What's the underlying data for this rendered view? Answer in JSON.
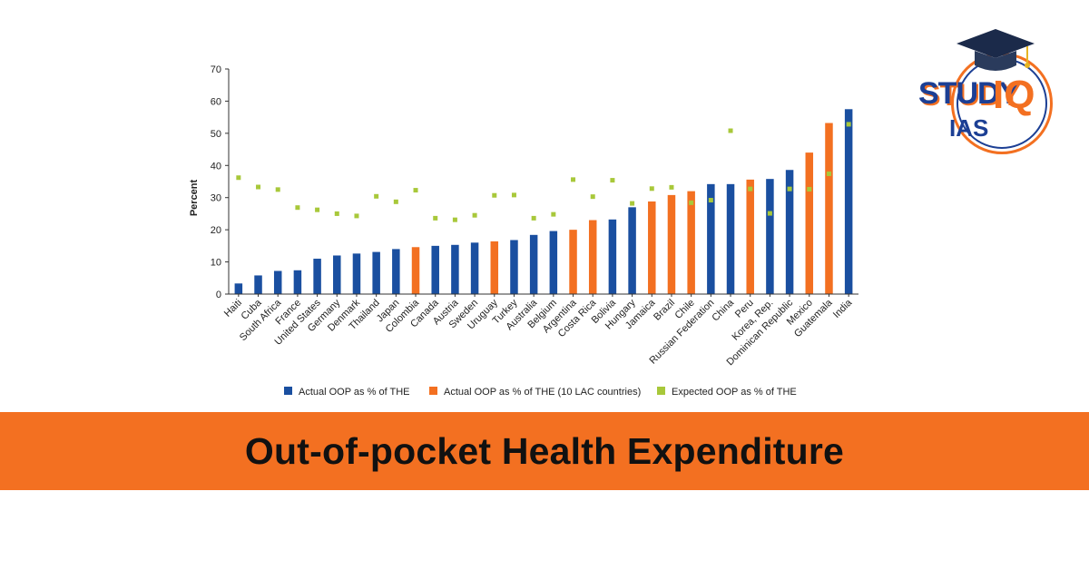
{
  "chart_data": {
    "type": "bar",
    "title": "",
    "ylabel": "Percent",
    "xlabel": "",
    "ylim": [
      0,
      70
    ],
    "yticks": [
      0,
      10,
      20,
      30,
      40,
      50,
      60,
      70
    ],
    "grid": false,
    "legend_position": "bottom",
    "categories": [
      "Haiti",
      "Cuba",
      "South Africa",
      "France",
      "United States",
      "Germany",
      "Denmark",
      "Thailand",
      "Japan",
      "Colombia",
      "Canada",
      "Austria",
      "Sweden",
      "Uruguay",
      "Turkey",
      "Australia",
      "Belgium",
      "Argentina",
      "Costa Rica",
      "Bolivia",
      "Hungary",
      "Jamaica",
      "Brazil",
      "Chile",
      "Russian Federation",
      "China",
      "Peru",
      "Korea, Rep.",
      "Dominican Republic",
      "Mexico",
      "Guatemala",
      "India"
    ],
    "groups": [
      "actual",
      "actual",
      "actual",
      "actual",
      "actual",
      "actual",
      "actual",
      "actual",
      "actual",
      "lac",
      "actual",
      "actual",
      "actual",
      "lac",
      "actual",
      "actual",
      "actual",
      "lac",
      "lac",
      "actual",
      "actual",
      "lac",
      "lac",
      "lac",
      "actual",
      "actual",
      "lac",
      "actual",
      "actual",
      "lac",
      "lac",
      "actual"
    ],
    "series": [
      {
        "name": "Actual OOP as % of THE",
        "color": "#1a4fa0"
      },
      {
        "name": "Actual OOP as % of THE (10 LAC countries)",
        "color": "#f37021"
      },
      {
        "name": "Expected OOP as % of THE",
        "color": "#a8c83a"
      }
    ],
    "actual_values": [
      3.3,
      5.8,
      7.2,
      7.4,
      11.0,
      12.0,
      12.6,
      13.1,
      14.0,
      14.6,
      15.0,
      15.3,
      16.0,
      16.4,
      16.8,
      18.4,
      19.6,
      20.0,
      23.0,
      23.2,
      27.0,
      28.8,
      30.8,
      32.0,
      34.2,
      34.2,
      35.6,
      35.8,
      38.6,
      44.0,
      53.2,
      57.5
    ],
    "expected_values": [
      36.2,
      33.3,
      32.5,
      26.9,
      26.2,
      25.0,
      24.3,
      30.4,
      28.7,
      32.3,
      23.6,
      23.1,
      24.5,
      30.7,
      30.8,
      23.6,
      24.8,
      35.6,
      30.3,
      35.4,
      28.2,
      32.8,
      33.2,
      28.4,
      29.2,
      50.8,
      32.7,
      25.1,
      32.7,
      32.6,
      37.4,
      52.8
    ]
  },
  "banner": {
    "title": "Out-of-pocket Health Expenditure"
  },
  "logo": {
    "study": "STUDY",
    "iq": "IQ",
    "ias": "IAS"
  }
}
